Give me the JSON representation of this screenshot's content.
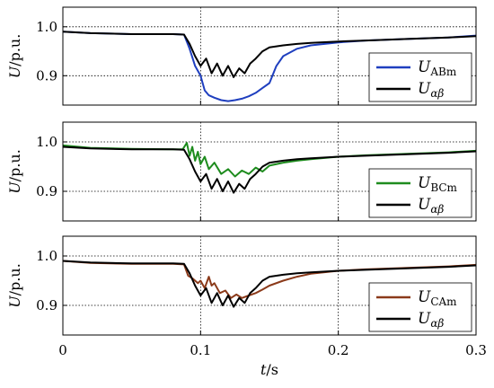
{
  "chart_data": [
    {
      "type": "line",
      "ylabel": "U/p.u.",
      "ylabel_unit": "p.u.",
      "ylabel_symbol": "U",
      "xlim": [
        0,
        0.3
      ],
      "ylim": [
        0.84,
        1.04
      ],
      "yticks": [
        0.9,
        1.0
      ],
      "ytick_labels": [
        "0.9",
        "1.0"
      ],
      "xticks": [
        0,
        0.1,
        0.2,
        0.3
      ],
      "grid": "dotted",
      "legend_position": "bottom-right",
      "series": [
        {
          "name": "U_ABm",
          "name_main": "U",
          "name_sub": "ABm",
          "color": "#1f3fbf",
          "x": [
            0,
            0.02,
            0.05,
            0.08,
            0.088,
            0.092,
            0.096,
            0.1,
            0.103,
            0.106,
            0.11,
            0.115,
            0.12,
            0.125,
            0.13,
            0.135,
            0.14,
            0.145,
            0.15,
            0.155,
            0.16,
            0.17,
            0.18,
            0.2,
            0.22,
            0.25,
            0.28,
            0.3
          ],
          "y": [
            0.99,
            0.987,
            0.985,
            0.985,
            0.984,
            0.955,
            0.92,
            0.9,
            0.87,
            0.86,
            0.855,
            0.85,
            0.848,
            0.85,
            0.853,
            0.858,
            0.865,
            0.875,
            0.885,
            0.92,
            0.94,
            0.955,
            0.962,
            0.968,
            0.972,
            0.975,
            0.978,
            0.982
          ]
        },
        {
          "name": "U_αβ",
          "name_main": "U",
          "name_sub": "αβ",
          "color": "#000000",
          "x": [
            0,
            0.02,
            0.05,
            0.08,
            0.088,
            0.092,
            0.096,
            0.1,
            0.104,
            0.108,
            0.112,
            0.116,
            0.12,
            0.124,
            0.128,
            0.132,
            0.136,
            0.14,
            0.145,
            0.15,
            0.16,
            0.17,
            0.18,
            0.2,
            0.22,
            0.25,
            0.28,
            0.3
          ],
          "y": [
            0.99,
            0.987,
            0.985,
            0.985,
            0.984,
            0.965,
            0.94,
            0.92,
            0.935,
            0.905,
            0.925,
            0.9,
            0.92,
            0.897,
            0.915,
            0.905,
            0.925,
            0.935,
            0.95,
            0.958,
            0.962,
            0.965,
            0.967,
            0.97,
            0.972,
            0.975,
            0.978,
            0.981
          ]
        }
      ]
    },
    {
      "type": "line",
      "ylabel": "U/p.u.",
      "ylabel_unit": "p.u.",
      "ylabel_symbol": "U",
      "xlim": [
        0,
        0.3
      ],
      "ylim": [
        0.84,
        1.04
      ],
      "yticks": [
        0.9,
        1.0
      ],
      "ytick_labels": [
        "0.9",
        "1.0"
      ],
      "xticks": [
        0,
        0.1,
        0.2,
        0.3
      ],
      "grid": "dotted",
      "legend_position": "bottom-right",
      "series": [
        {
          "name": "U_BCm",
          "name_main": "U",
          "name_sub": "BCm",
          "color": "#1e8c1e",
          "x": [
            0,
            0.02,
            0.05,
            0.08,
            0.087,
            0.09,
            0.092,
            0.094,
            0.096,
            0.098,
            0.1,
            0.103,
            0.106,
            0.11,
            0.115,
            0.12,
            0.125,
            0.13,
            0.135,
            0.14,
            0.145,
            0.15,
            0.16,
            0.17,
            0.18,
            0.2,
            0.22,
            0.25,
            0.28,
            0.3
          ],
          "y": [
            0.993,
            0.988,
            0.986,
            0.985,
            0.985,
            0.998,
            0.972,
            0.99,
            0.962,
            0.98,
            0.955,
            0.97,
            0.945,
            0.958,
            0.935,
            0.945,
            0.93,
            0.942,
            0.935,
            0.948,
            0.94,
            0.952,
            0.958,
            0.962,
            0.965,
            0.97,
            0.973,
            0.976,
            0.979,
            0.982
          ]
        },
        {
          "name": "U_αβ",
          "name_main": "U",
          "name_sub": "αβ",
          "color": "#000000",
          "x": [
            0,
            0.02,
            0.05,
            0.08,
            0.088,
            0.092,
            0.096,
            0.1,
            0.104,
            0.108,
            0.112,
            0.116,
            0.12,
            0.124,
            0.128,
            0.132,
            0.136,
            0.14,
            0.145,
            0.15,
            0.16,
            0.17,
            0.18,
            0.2,
            0.22,
            0.25,
            0.28,
            0.3
          ],
          "y": [
            0.99,
            0.987,
            0.985,
            0.985,
            0.984,
            0.965,
            0.94,
            0.92,
            0.935,
            0.905,
            0.925,
            0.9,
            0.92,
            0.897,
            0.915,
            0.905,
            0.925,
            0.935,
            0.95,
            0.958,
            0.962,
            0.965,
            0.967,
            0.97,
            0.972,
            0.975,
            0.978,
            0.981
          ]
        }
      ]
    },
    {
      "type": "line",
      "ylabel": "U/p.u.",
      "ylabel_unit": "p.u.",
      "ylabel_symbol": "U",
      "xlabel": "t/s",
      "xlabel_symbol": "t",
      "xlabel_unit": "s",
      "xlim": [
        0,
        0.3
      ],
      "ylim": [
        0.84,
        1.04
      ],
      "yticks": [
        0.9,
        1.0
      ],
      "ytick_labels": [
        "0.9",
        "1.0"
      ],
      "xticks": [
        0,
        0.1,
        0.2,
        0.3
      ],
      "xtick_labels": [
        "0",
        "0.1",
        "0.2",
        "0.3"
      ],
      "grid": "dotted",
      "legend_position": "bottom-right",
      "series": [
        {
          "name": "U_CAm",
          "name_main": "U",
          "name_sub": "CAm",
          "color": "#8b3a1a",
          "x": [
            0,
            0.02,
            0.05,
            0.08,
            0.088,
            0.091,
            0.094,
            0.098,
            0.1,
            0.103,
            0.106,
            0.108,
            0.11,
            0.114,
            0.118,
            0.122,
            0.126,
            0.13,
            0.135,
            0.14,
            0.145,
            0.15,
            0.16,
            0.17,
            0.18,
            0.2,
            0.22,
            0.25,
            0.28,
            0.3
          ],
          "y": [
            0.99,
            0.986,
            0.984,
            0.984,
            0.983,
            0.96,
            0.955,
            0.945,
            0.95,
            0.935,
            0.958,
            0.94,
            0.945,
            0.925,
            0.93,
            0.915,
            0.922,
            0.915,
            0.92,
            0.925,
            0.932,
            0.94,
            0.95,
            0.958,
            0.964,
            0.97,
            0.973,
            0.976,
            0.979,
            0.982
          ]
        },
        {
          "name": "U_αβ",
          "name_main": "U",
          "name_sub": "αβ",
          "color": "#000000",
          "x": [
            0,
            0.02,
            0.05,
            0.08,
            0.088,
            0.092,
            0.096,
            0.1,
            0.104,
            0.108,
            0.112,
            0.116,
            0.12,
            0.124,
            0.128,
            0.132,
            0.136,
            0.14,
            0.145,
            0.15,
            0.16,
            0.17,
            0.18,
            0.2,
            0.22,
            0.25,
            0.28,
            0.3
          ],
          "y": [
            0.99,
            0.987,
            0.985,
            0.985,
            0.984,
            0.965,
            0.94,
            0.92,
            0.935,
            0.905,
            0.925,
            0.9,
            0.92,
            0.897,
            0.915,
            0.905,
            0.925,
            0.935,
            0.95,
            0.958,
            0.962,
            0.965,
            0.967,
            0.97,
            0.972,
            0.975,
            0.978,
            0.981
          ]
        }
      ]
    }
  ]
}
